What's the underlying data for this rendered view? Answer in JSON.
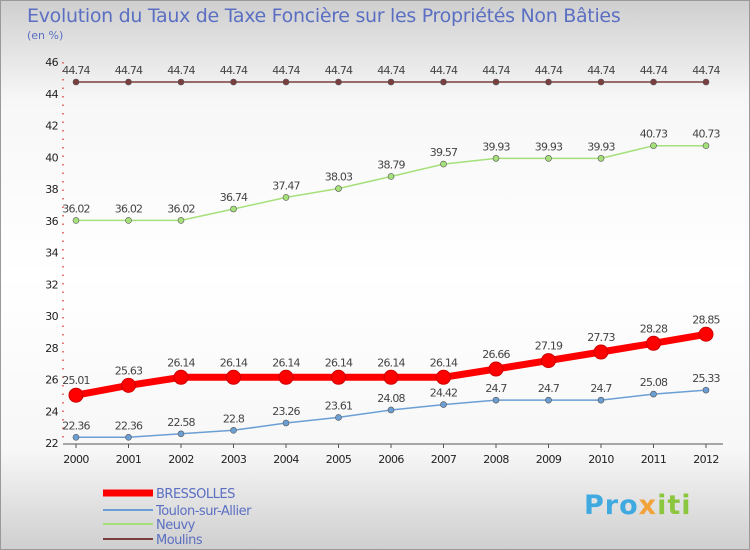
{
  "chart_data": {
    "type": "line",
    "title": "Evolution du Taux de Taxe Foncière sur les Propriétés Non Bâties",
    "unit_label": "(en %)",
    "categories": [
      "2000",
      "2001",
      "2002",
      "2003",
      "2004",
      "2005",
      "2006",
      "2007",
      "2008",
      "2009",
      "2010",
      "2011",
      "2012"
    ],
    "ylim": [
      22,
      46
    ],
    "yticks": [
      22,
      24,
      26,
      28,
      30,
      32,
      34,
      36,
      38,
      40,
      42,
      44,
      46
    ],
    "grid": false,
    "legend_position": "bottom-left",
    "series": [
      {
        "name": "BRESSOLLES",
        "color": "#ff0000",
        "labels": [
          "25.01",
          "25.63",
          "26.14",
          "26.14",
          "26.14",
          "26.14",
          "26.14",
          "26.14",
          "26.66",
          "27.19",
          "27.73",
          "28.28",
          "28.85"
        ],
        "values": [
          25.01,
          25.63,
          26.14,
          26.14,
          26.14,
          26.14,
          26.14,
          26.14,
          26.66,
          27.19,
          27.73,
          28.28,
          28.85
        ]
      },
      {
        "name": "Toulon-sur-Allier",
        "color": "#6b9fd4",
        "labels": [
          "22.36",
          "22.36",
          "22.58",
          "22.8",
          "23.26",
          "23.61",
          "24.08",
          "24.42",
          "24.7",
          "24.7",
          "24.7",
          "25.08",
          "25.33"
        ],
        "values": [
          22.36,
          22.36,
          22.58,
          22.8,
          23.26,
          23.61,
          24.08,
          24.42,
          24.7,
          24.7,
          24.7,
          25.08,
          25.33
        ]
      },
      {
        "name": "Neuvy",
        "color": "#a6e07a",
        "labels": [
          "36.02",
          "36.02",
          "36.02",
          "36.74",
          "37.47",
          "38.03",
          "38.79",
          "39.57",
          "39.93",
          "39.93",
          "39.93",
          "40.73",
          "40.73"
        ],
        "values": [
          36.02,
          36.02,
          36.02,
          36.74,
          37.47,
          38.03,
          38.79,
          39.57,
          39.93,
          39.93,
          39.93,
          40.73,
          40.73
        ]
      },
      {
        "name": "Moulins",
        "color": "#7a3e3e",
        "labels": [
          "44.74",
          "44.74",
          "44.74",
          "44.74",
          "44.74",
          "44.74",
          "44.74",
          "44.74",
          "44.74",
          "44.74",
          "44.74",
          "44.74",
          "44.74"
        ],
        "values": [
          44.74,
          44.74,
          44.74,
          44.74,
          44.74,
          44.74,
          44.74,
          44.74,
          44.74,
          44.74,
          44.74,
          44.74,
          44.74
        ]
      }
    ]
  },
  "logo": {
    "text": "Proxiti",
    "parts": [
      "Pro",
      "x",
      "iti"
    ]
  }
}
